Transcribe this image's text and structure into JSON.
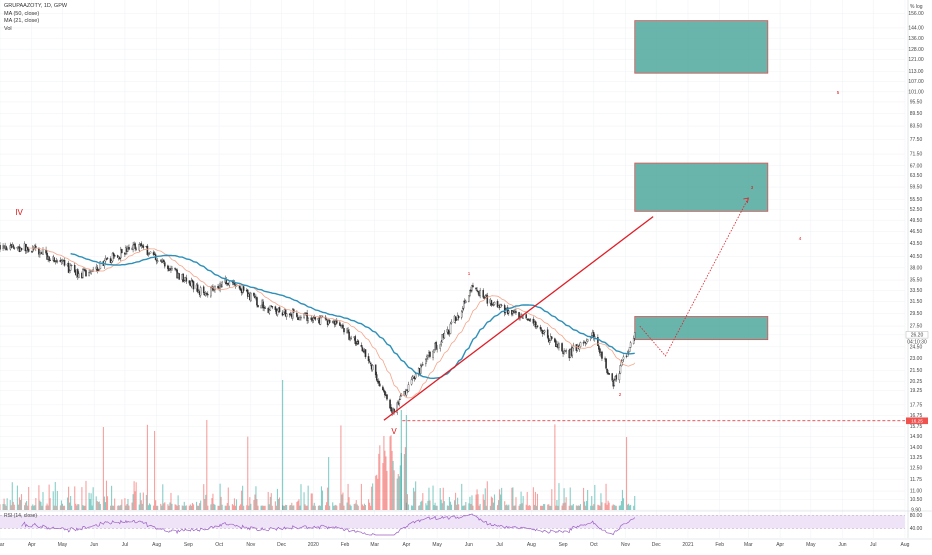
{
  "legend": {
    "symbol": "GRUPAAZOTY, 1D, GPW",
    "ma1": "MA (50, close)",
    "ma2": "MA (21, close)",
    "vol": "Vol",
    "rsi": "RSI (14, close)"
  },
  "top_right": "% log",
  "price_axis": {
    "ticks": [
      "156.00",
      "144.00",
      "136.00",
      "128.00",
      "121.00",
      "113.00",
      "107.00",
      "101.00",
      "95.50",
      "89.50",
      "83.50",
      "77.50",
      "71.50",
      "67.00",
      "63.50",
      "59.50",
      "55.50",
      "52.50",
      "49.50",
      "46.50",
      "43.50",
      "40.50",
      "38.00",
      "35.50",
      "33.50",
      "31.50",
      "29.50",
      "27.50",
      "26.20",
      "24.50",
      "23.00",
      "21.50",
      "20.25",
      "19.25",
      "17.75",
      "16.75",
      "15.75",
      "14.90",
      "14.00",
      "13.25",
      "12.50",
      "11.75",
      "11.00",
      "10.50",
      "9.90"
    ],
    "last_price": "26.20",
    "countdown": "04:10:30",
    "label_level": "16.25",
    "label_colors": {
      "last": "#26a69a",
      "level": "#ef5350"
    }
  },
  "rsi_axis": {
    "ticks": [
      "80.00",
      "40.00"
    ]
  },
  "time_axis": {
    "ticks": [
      "Mar",
      "Apr",
      "May",
      "Jun",
      "Jul",
      "Aug",
      "Sep",
      "Oct",
      "Nov",
      "Dec",
      "2020",
      "Feb",
      "Mar",
      "Apr",
      "May",
      "Jun",
      "Jul",
      "Aug",
      "Sep",
      "Oct",
      "Nov",
      "Dec",
      "2021",
      "Feb",
      "Mar",
      "Apr",
      "May",
      "Jun",
      "Jul",
      "Aug"
    ]
  },
  "wave_labels": {
    "iv": "IV",
    "v": "V",
    "w1": "1",
    "w2": "2",
    "w3": "3",
    "w4": "4",
    "w5": "5"
  },
  "colors": {
    "up": "#26a69a",
    "down": "#ef5350",
    "ma50": "#2e8fb8",
    "ma21": "#f4a58a",
    "trend_line": "#e01e26",
    "box_fill": "#4fa89c",
    "box_border": "#e05050",
    "rsi_line": "#9c5fc4",
    "rsi_band": "#efe3f7"
  },
  "chart_data": {
    "type": "candlestick",
    "title": "GRUPAAZOTY, 1D, GPW",
    "ylabel": "",
    "y_scale": "log",
    "ylim": [
      9.9,
      160
    ],
    "x_start": "2019-03",
    "x_end": "2021-08",
    "price_path": [
      {
        "date": "2019-03-01",
        "close": 43.0
      },
      {
        "date": "2019-04-05",
        "close": 42.0
      },
      {
        "date": "2019-05-20",
        "close": 36.5
      },
      {
        "date": "2019-06-10",
        "close": 39.0
      },
      {
        "date": "2019-07-15",
        "close": 43.5
      },
      {
        "date": "2019-08-10",
        "close": 38.5
      },
      {
        "date": "2019-09-15",
        "close": 33.0
      },
      {
        "date": "2019-10-10",
        "close": 35.5
      },
      {
        "date": "2019-11-15",
        "close": 30.5
      },
      {
        "date": "2019-12-20",
        "close": 29.0
      },
      {
        "date": "2020-01-25",
        "close": 28.0
      },
      {
        "date": "2020-02-20",
        "close": 24.0
      },
      {
        "date": "2020-03-18",
        "close": 17.0
      },
      {
        "date": "2020-04-15",
        "close": 22.0
      },
      {
        "date": "2020-05-15",
        "close": 27.5
      },
      {
        "date": "2020-06-05",
        "close": 34.0
      },
      {
        "date": "2020-07-01",
        "close": 30.5
      },
      {
        "date": "2020-08-05",
        "close": 27.5
      },
      {
        "date": "2020-09-05",
        "close": 23.5
      },
      {
        "date": "2020-10-01",
        "close": 26.0
      },
      {
        "date": "2020-10-20",
        "close": 20.0
      },
      {
        "date": "2020-11-10",
        "close": 26.2
      }
    ],
    "last_price": 26.2,
    "support_level": 16.25,
    "projection_boxes": [
      {
        "from": "2020-11",
        "to": "2021-03",
        "low": 25.5,
        "high": 29.0
      },
      {
        "from": "2020-11",
        "to": "2021-03",
        "low": 52.0,
        "high": 68.0
      },
      {
        "from": "2020-11",
        "to": "2021-03",
        "low": 112.0,
        "high": 150.0
      }
    ],
    "projection_path": [
      {
        "date": "2020-11-15",
        "value": 27.5
      },
      {
        "date": "2020-12-10",
        "value": 23.3
      },
      {
        "date": "2021-03-01",
        "value": 56.0
      }
    ],
    "rsi_levels": [
      80,
      40
    ]
  }
}
